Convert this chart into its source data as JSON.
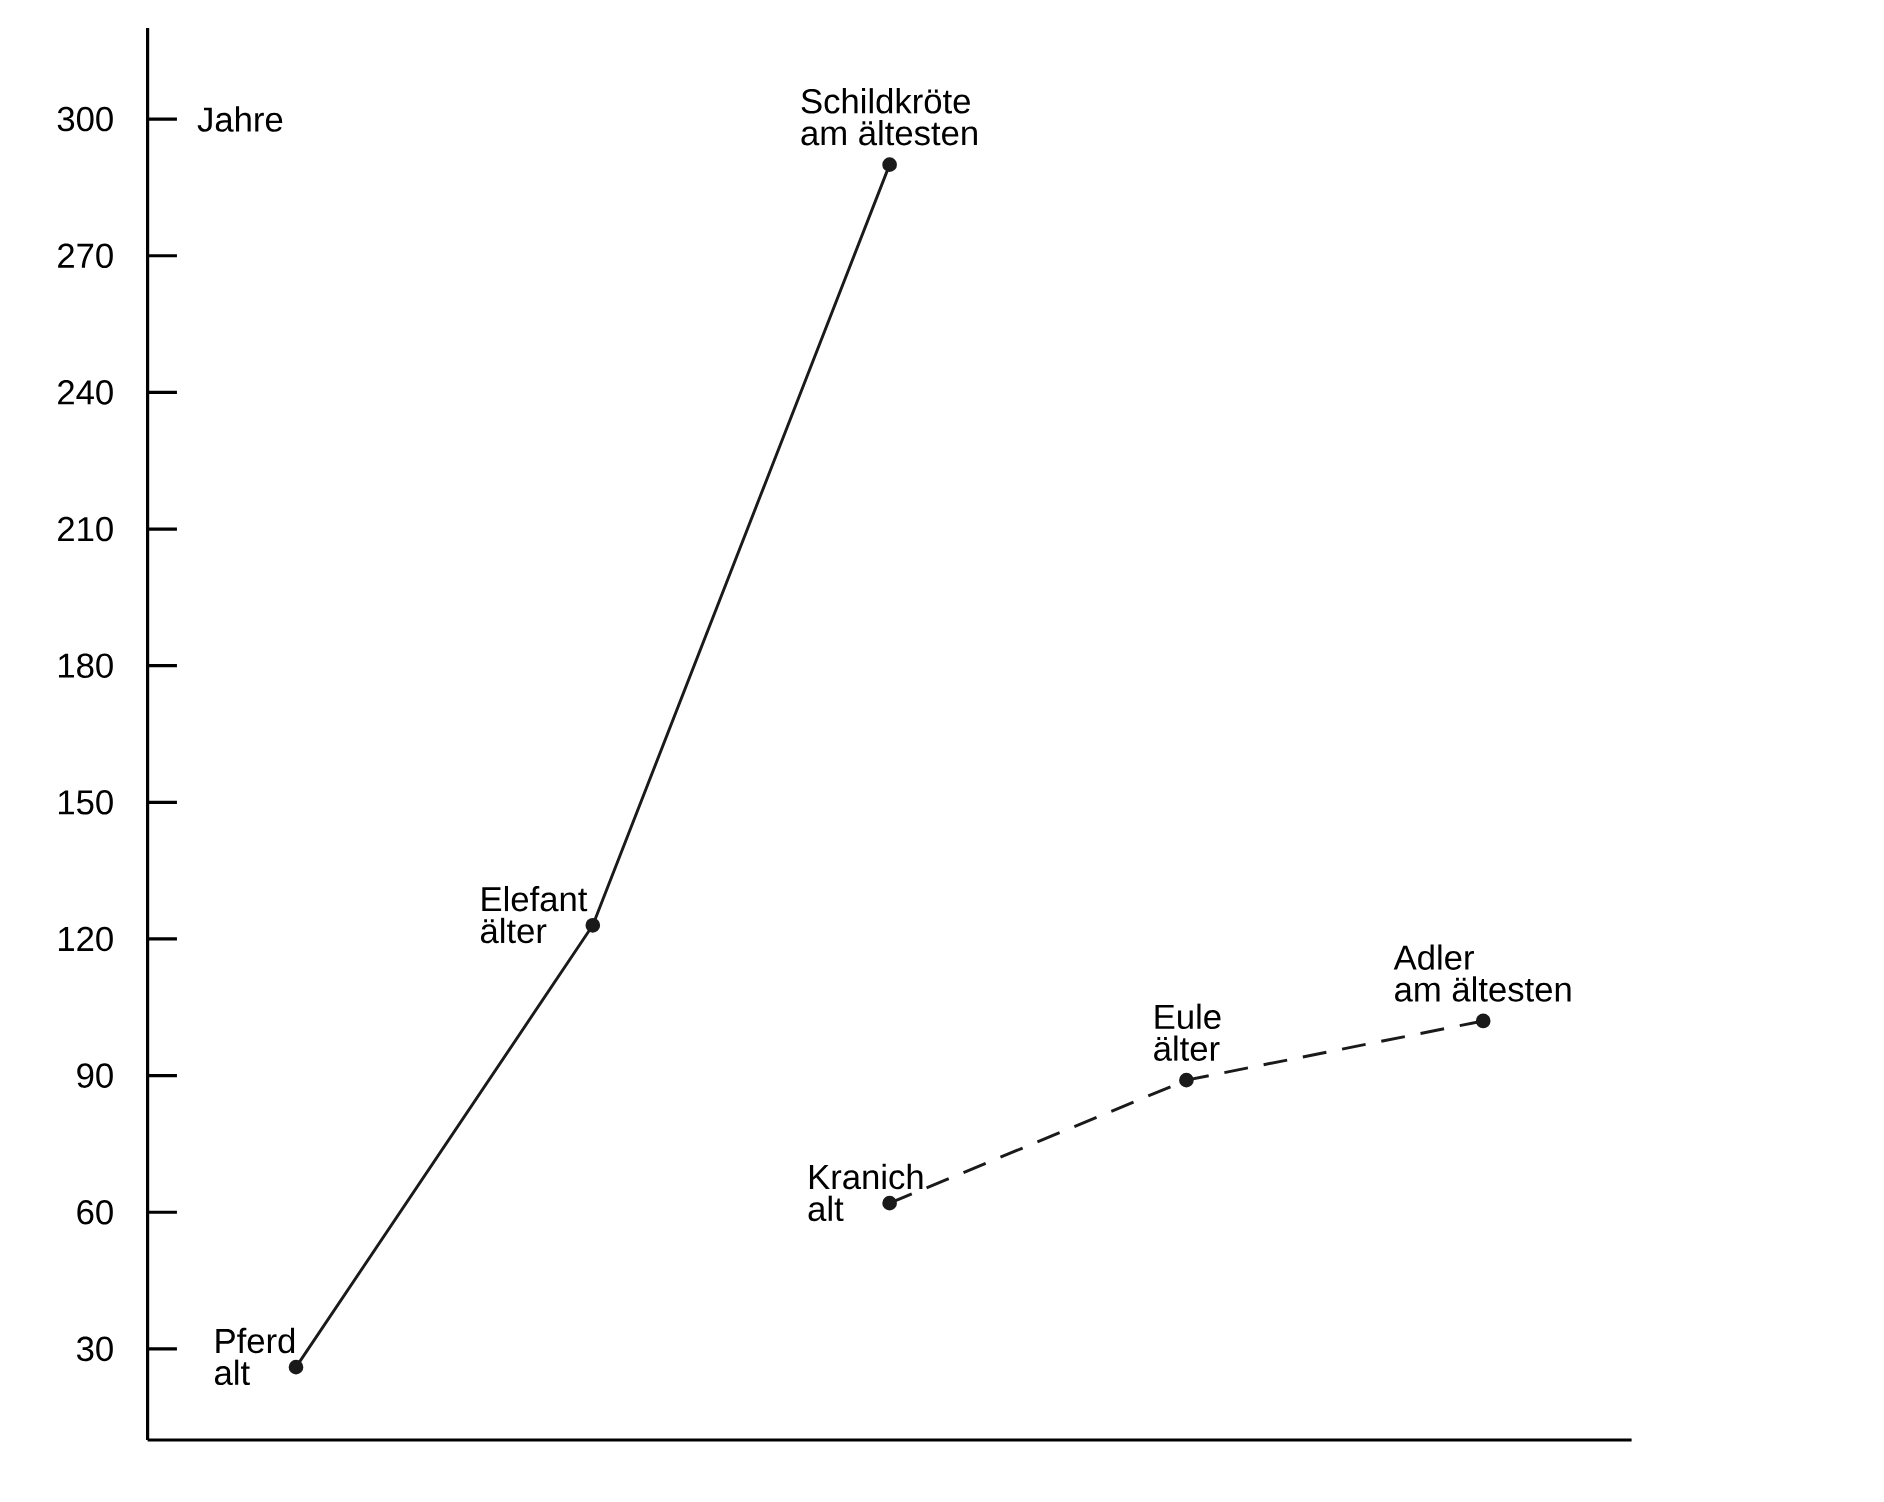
{
  "chart_data": {
    "type": "line",
    "ylabel": "Jahre",
    "categories": [
      null,
      null,
      null,
      null,
      null
    ],
    "ylim": [
      10,
      320
    ],
    "yticks": [
      30,
      60,
      90,
      120,
      150,
      180,
      210,
      240,
      270,
      300
    ],
    "tick_labels": "y",
    "marker": "circle",
    "series": [
      {
        "color": "#1a1a1a",
        "line_style": "solid",
        "values": [
          26,
          123,
          290,
          null,
          null
        ]
      },
      {
        "color": "#1a1a1a",
        "line_style": "dashed",
        "values": [
          null,
          null,
          62,
          89,
          102
        ]
      }
    ],
    "annotations": [
      "Pferd",
      "alt",
      "Elefant",
      "älter",
      "Schildkröte",
      "am ältesten",
      "Kranich",
      "alt",
      "Eule",
      "älter",
      "Adler",
      "am ältesten"
    ]
  }
}
